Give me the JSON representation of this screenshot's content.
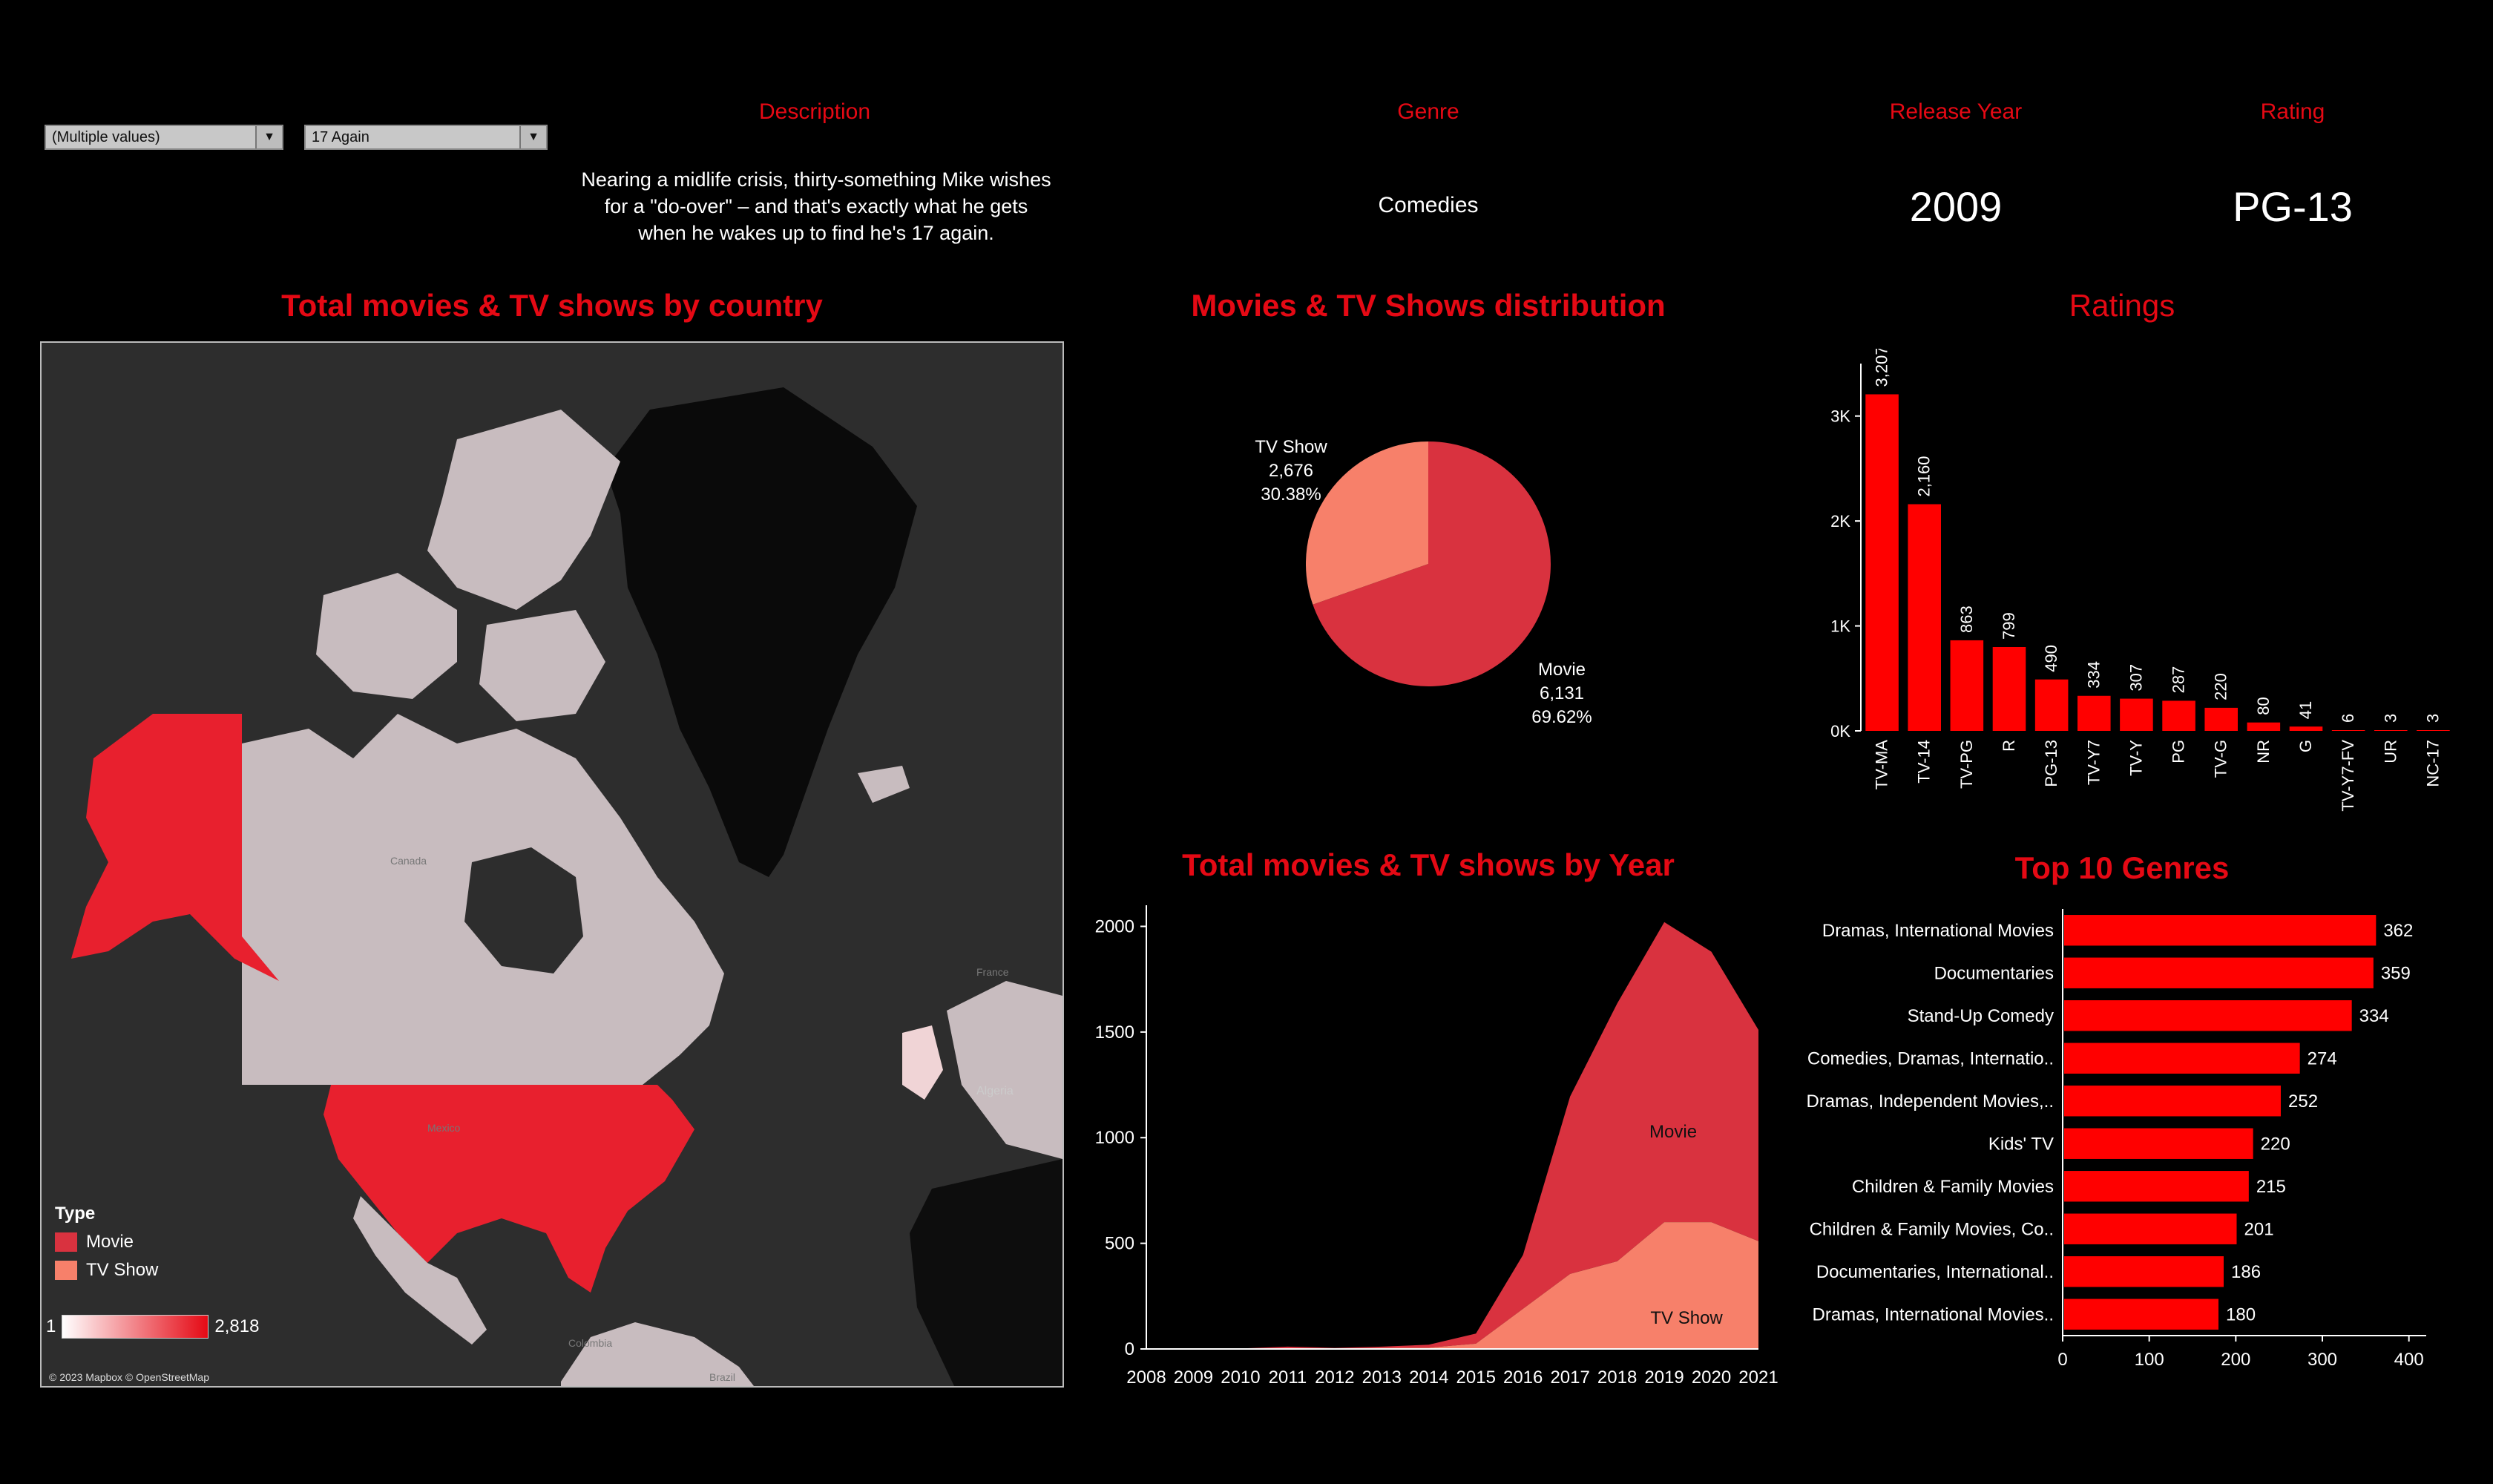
{
  "filters": [
    {
      "value": "(Multiple values)"
    },
    {
      "value": "17 Again"
    }
  ],
  "header": {
    "description_label": "Description",
    "description_text": [
      "Nearing a midlife crisis, thirty-something Mike wishes",
      "for a \"do-over\" – and that's exactly what he gets",
      "when he wakes up to find he's 17 again."
    ],
    "genre_label": "Genre",
    "genre_value": "Comedies",
    "release_year_label": "Release Year",
    "release_year_value": "2009",
    "rating_label": "Rating",
    "rating_value": "PG-13"
  },
  "map": {
    "title": "Total movies & TV shows by country",
    "legend_title": "Type",
    "legend_items": [
      {
        "label": "Movie",
        "color": "#d9323f"
      },
      {
        "label": "TV Show",
        "color": "#f7806a"
      }
    ],
    "scale_min": "1",
    "scale_max": "2,818",
    "attribution": "© 2023 Mapbox © OpenStreetMap",
    "place_labels": [
      "Canada",
      "Mexico",
      "Colombia",
      "Brazil",
      "France",
      "Algeria"
    ]
  },
  "colors": {
    "accent": "#e50914",
    "movie": "#d9323f",
    "tvshow": "#f7806a",
    "bar": "#ff0000"
  },
  "chart_data": [
    {
      "type": "pie",
      "title": "Movies & TV Shows distribution",
      "slices": [
        {
          "label": "Movie",
          "value": 6131,
          "value_label": "6,131",
          "percent": "69.62%",
          "color": "#d9323f"
        },
        {
          "label": "TV Show",
          "value": 2676,
          "value_label": "2,676",
          "percent": "30.38%",
          "color": "#f7806a"
        }
      ]
    },
    {
      "type": "bar",
      "title": "Ratings",
      "categories": [
        "TV-MA",
        "TV-14",
        "TV-PG",
        "R",
        "PG-13",
        "TV-Y7",
        "TV-Y",
        "PG",
        "TV-G",
        "NR",
        "G",
        "TV-Y7-FV",
        "UR",
        "NC-17"
      ],
      "values": [
        3207,
        2160,
        863,
        799,
        490,
        334,
        307,
        287,
        220,
        80,
        41,
        6,
        3,
        3
      ],
      "value_labels": [
        "3,207",
        "2,160",
        "863",
        "799",
        "490",
        "334",
        "307",
        "287",
        "220",
        "80",
        "41",
        "6",
        "3",
        "3"
      ],
      "yticks": [
        0,
        1000,
        2000,
        3000
      ],
      "ytick_labels": [
        "0K",
        "1K",
        "2K",
        "3K"
      ],
      "ylim": [
        0,
        3500
      ]
    },
    {
      "type": "area",
      "title": "Total movies & TV shows by Year",
      "x": [
        2008,
        2009,
        2010,
        2011,
        2012,
        2013,
        2014,
        2015,
        2016,
        2017,
        2018,
        2019,
        2020,
        2021
      ],
      "series": [
        {
          "name": "Movie",
          "values": [
            1,
            1,
            1,
            10,
            3,
            6,
            14,
            48,
            255,
            840,
            1220,
            1420,
            1280,
            1000
          ],
          "color": "#d9323f"
        },
        {
          "name": "TV Show",
          "values": [
            1,
            1,
            1,
            1,
            2,
            5,
            6,
            25,
            190,
            355,
            415,
            600,
            600,
            510
          ],
          "color": "#f7806a"
        }
      ],
      "yticks": [
        0,
        500,
        1000,
        1500,
        2000
      ],
      "ylim": [
        0,
        2100
      ]
    },
    {
      "type": "bar",
      "orientation": "horizontal",
      "title": "Top 10 Genres",
      "categories": [
        "Dramas, International Movies",
        "Documentaries",
        "Stand-Up Comedy",
        "Comedies, Dramas, Internatio..",
        "Dramas, Independent Movies,..",
        "Kids' TV",
        "Children & Family Movies",
        "Children & Family Movies, Co..",
        "Documentaries, International..",
        "Dramas, International Movies.."
      ],
      "values": [
        362,
        359,
        334,
        274,
        252,
        220,
        215,
        201,
        186,
        180
      ],
      "xticks": [
        0,
        100,
        200,
        300,
        400
      ],
      "xlim": [
        0,
        420
      ]
    }
  ]
}
